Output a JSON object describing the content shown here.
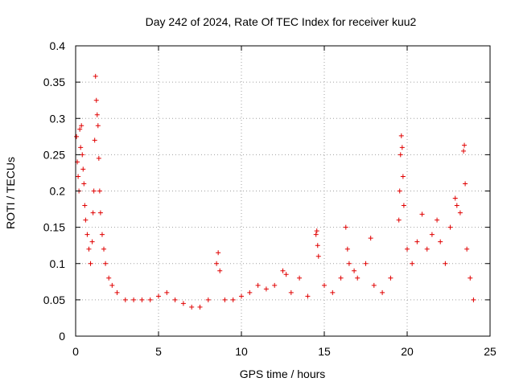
{
  "chart_data": {
    "type": "scatter",
    "title": "Day 242 of 2024, Rate Of TEC Index for receiver kuu2",
    "xlabel": "GPS time / hours",
    "ylabel": "ROTI / TECUs",
    "xlim": [
      0,
      25
    ],
    "ylim": [
      0,
      0.4
    ],
    "x_ticks": [
      0,
      5,
      10,
      15,
      20,
      25
    ],
    "y_ticks": [
      0,
      0.05,
      0.1,
      0.15,
      0.2,
      0.25,
      0.3,
      0.35,
      0.4
    ],
    "grid": true,
    "marker": "+",
    "series_color": "#e00000",
    "series": [
      {
        "points": [
          [
            0.05,
            0.275
          ],
          [
            0.1,
            0.24
          ],
          [
            0.15,
            0.22
          ],
          [
            0.2,
            0.2
          ],
          [
            0.25,
            0.285
          ],
          [
            0.3,
            0.26
          ],
          [
            0.35,
            0.29
          ],
          [
            0.4,
            0.25
          ],
          [
            0.45,
            0.23
          ],
          [
            0.5,
            0.21
          ],
          [
            0.55,
            0.18
          ],
          [
            0.6,
            0.16
          ],
          [
            0.7,
            0.14
          ],
          [
            0.8,
            0.12
          ],
          [
            0.9,
            0.1
          ],
          [
            1.0,
            0.13
          ],
          [
            1.05,
            0.17
          ],
          [
            1.1,
            0.2
          ],
          [
            1.15,
            0.27
          ],
          [
            1.2,
            0.358
          ],
          [
            1.25,
            0.325
          ],
          [
            1.3,
            0.305
          ],
          [
            1.35,
            0.29
          ],
          [
            1.4,
            0.245
          ],
          [
            1.45,
            0.2
          ],
          [
            1.5,
            0.17
          ],
          [
            1.6,
            0.14
          ],
          [
            1.7,
            0.12
          ],
          [
            1.8,
            0.1
          ],
          [
            2.0,
            0.08
          ],
          [
            2.2,
            0.07
          ],
          [
            2.5,
            0.06
          ],
          [
            3.0,
            0.05
          ],
          [
            3.5,
            0.05
          ],
          [
            4.0,
            0.05
          ],
          [
            4.5,
            0.05
          ],
          [
            5.0,
            0.055
          ],
          [
            5.5,
            0.06
          ],
          [
            6.0,
            0.05
          ],
          [
            6.5,
            0.045
          ],
          [
            7.0,
            0.04
          ],
          [
            7.5,
            0.04
          ],
          [
            8.0,
            0.05
          ],
          [
            8.5,
            0.1
          ],
          [
            8.6,
            0.115
          ],
          [
            8.7,
            0.09
          ],
          [
            9.0,
            0.05
          ],
          [
            9.5,
            0.05
          ],
          [
            10.0,
            0.055
          ],
          [
            10.5,
            0.06
          ],
          [
            11.0,
            0.07
          ],
          [
            11.5,
            0.065
          ],
          [
            12.0,
            0.07
          ],
          [
            12.5,
            0.09
          ],
          [
            12.7,
            0.085
          ],
          [
            13.0,
            0.06
          ],
          [
            13.5,
            0.08
          ],
          [
            14.0,
            0.055
          ],
          [
            14.5,
            0.14
          ],
          [
            14.55,
            0.145
          ],
          [
            14.6,
            0.125
          ],
          [
            14.65,
            0.11
          ],
          [
            15.0,
            0.07
          ],
          [
            15.5,
            0.06
          ],
          [
            16.0,
            0.08
          ],
          [
            16.3,
            0.15
          ],
          [
            16.4,
            0.12
          ],
          [
            16.5,
            0.1
          ],
          [
            16.8,
            0.09
          ],
          [
            17.0,
            0.08
          ],
          [
            17.5,
            0.1
          ],
          [
            17.8,
            0.135
          ],
          [
            18.0,
            0.07
          ],
          [
            18.5,
            0.06
          ],
          [
            19.0,
            0.08
          ],
          [
            19.5,
            0.16
          ],
          [
            19.55,
            0.2
          ],
          [
            19.6,
            0.25
          ],
          [
            19.65,
            0.276
          ],
          [
            19.7,
            0.26
          ],
          [
            19.75,
            0.22
          ],
          [
            19.8,
            0.18
          ],
          [
            20.0,
            0.12
          ],
          [
            20.3,
            0.1
          ],
          [
            20.6,
            0.13
          ],
          [
            20.9,
            0.168
          ],
          [
            21.2,
            0.12
          ],
          [
            21.5,
            0.14
          ],
          [
            21.8,
            0.16
          ],
          [
            22.0,
            0.13
          ],
          [
            22.3,
            0.1
          ],
          [
            22.6,
            0.15
          ],
          [
            22.9,
            0.19
          ],
          [
            23.0,
            0.18
          ],
          [
            23.2,
            0.17
          ],
          [
            23.4,
            0.255
          ],
          [
            23.45,
            0.263
          ],
          [
            23.5,
            0.21
          ],
          [
            23.6,
            0.12
          ],
          [
            23.8,
            0.08
          ],
          [
            24.0,
            0.05
          ]
        ]
      }
    ]
  }
}
